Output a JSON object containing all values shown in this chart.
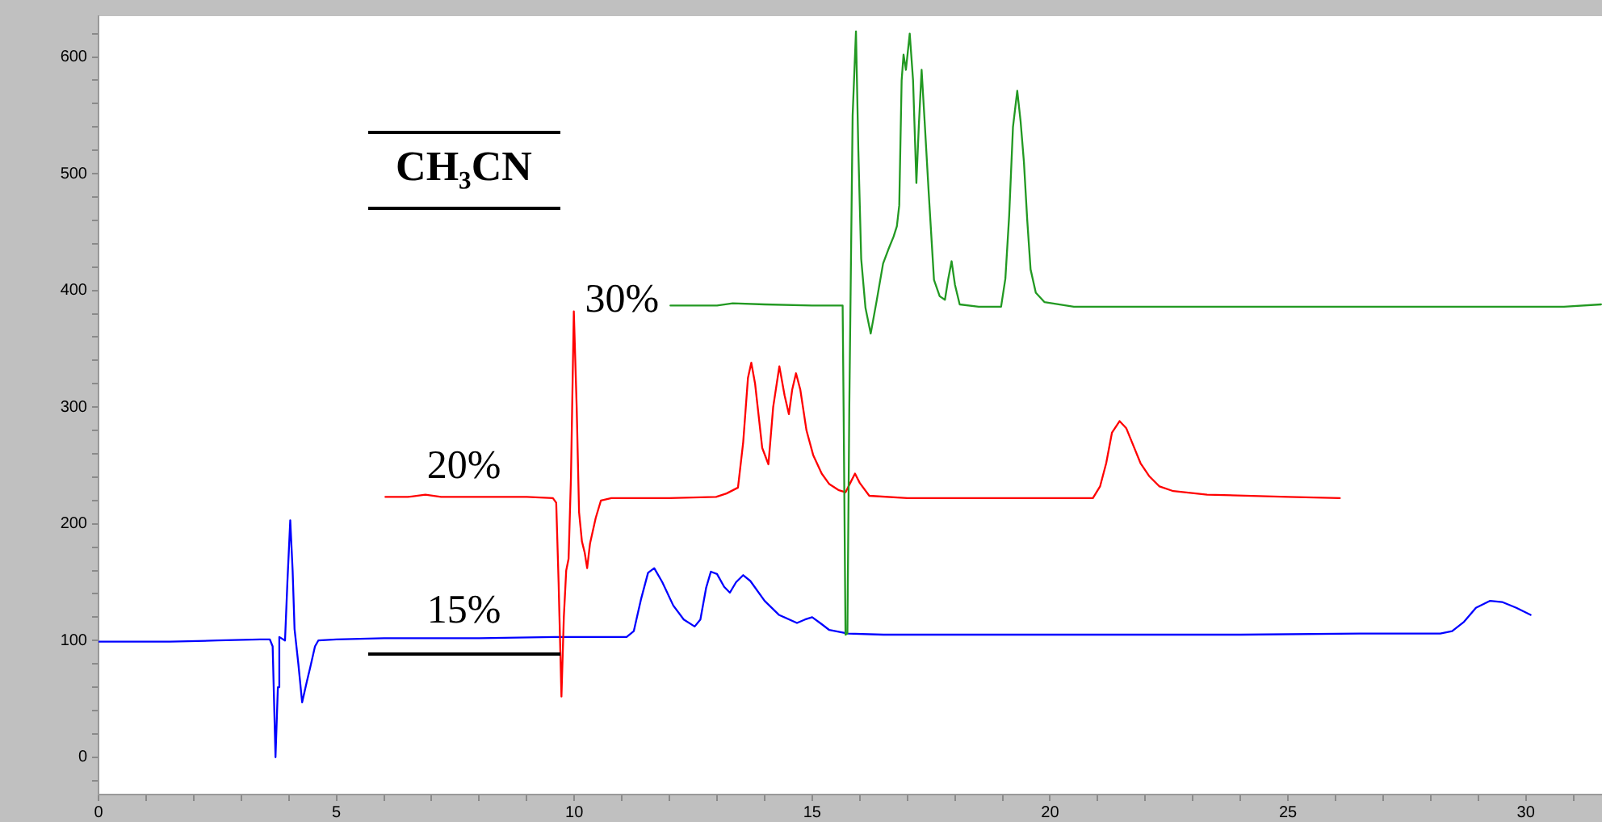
{
  "chart_data": {
    "type": "line",
    "legend_title": "CH₃CN",
    "marker": "none",
    "xlim": [
      0,
      31.6
    ],
    "ylim": [
      -32,
      635
    ],
    "xticks": [
      0,
      {
        "value": 1,
        "label": null
      },
      {
        "value": 2,
        "label": null
      },
      {
        "value": 3,
        "label": null
      },
      {
        "value": 4,
        "label": null
      },
      5,
      {
        "value": 6,
        "label": null
      },
      {
        "value": 7,
        "label": null
      },
      {
        "value": 8,
        "label": null
      },
      {
        "value": 9,
        "label": null
      },
      10,
      {
        "value": 11,
        "label": null
      },
      {
        "value": 12,
        "label": null
      },
      {
        "value": 13,
        "label": null
      },
      {
        "value": 14,
        "label": null
      },
      15,
      {
        "value": 16,
        "label": null
      },
      {
        "value": 17,
        "label": null
      },
      {
        "value": 18,
        "label": null
      },
      {
        "value": 19,
        "label": null
      },
      20,
      {
        "value": 21,
        "label": null
      },
      {
        "value": 22,
        "label": null
      },
      {
        "value": 23,
        "label": null
      },
      {
        "value": 24,
        "label": null
      },
      25,
      {
        "value": 26,
        "label": null
      },
      {
        "value": 27,
        "label": null
      },
      {
        "value": 28,
        "label": null
      },
      {
        "value": 29,
        "label": null
      },
      30,
      {
        "value": 31,
        "label": null
      }
    ],
    "yticks": [
      {
        "value": -20,
        "label": null
      },
      0,
      {
        "value": 20,
        "label": null
      },
      {
        "value": 40,
        "label": null
      },
      {
        "value": 60,
        "label": null
      },
      {
        "value": 80,
        "label": null
      },
      100,
      {
        "value": 120,
        "label": null
      },
      {
        "value": 140,
        "label": null
      },
      {
        "value": 160,
        "label": null
      },
      {
        "value": 180,
        "label": null
      },
      200,
      {
        "value": 220,
        "label": null
      },
      {
        "value": 240,
        "label": null
      },
      {
        "value": 260,
        "label": null
      },
      {
        "value": 280,
        "label": null
      },
      300,
      {
        "value": 320,
        "label": null
      },
      {
        "value": 340,
        "label": null
      },
      {
        "value": 360,
        "label": null
      },
      {
        "value": 380,
        "label": null
      },
      400,
      {
        "value": 420,
        "label": null
      },
      {
        "value": 440,
        "label": null
      },
      {
        "value": 460,
        "label": null
      },
      {
        "value": 480,
        "label": null
      },
      500,
      {
        "value": 520,
        "label": null
      },
      {
        "value": 540,
        "label": null
      },
      {
        "value": 560,
        "label": null
      },
      {
        "value": 580,
        "label": null
      },
      600,
      {
        "value": 620,
        "label": null
      }
    ],
    "series": [
      {
        "name": "30%",
        "color": "#229922",
        "x": [
          12.02,
          13.0,
          13.33,
          14.0,
          15.0,
          15.64,
          15.66,
          15.7,
          15.74,
          15.78,
          15.85,
          15.92,
          15.97,
          16.03,
          16.12,
          16.23,
          16.35,
          16.49,
          16.6,
          16.71,
          16.78,
          16.83,
          16.88,
          16.92,
          16.97,
          17.05,
          17.12,
          17.19,
          17.24,
          17.3,
          17.37,
          17.45,
          17.56,
          17.68,
          17.79,
          17.86,
          17.93,
          18.0,
          18.1,
          18.5,
          18.97,
          19.06,
          19.14,
          19.22,
          19.31,
          19.38,
          19.45,
          19.52,
          19.59,
          19.7,
          19.88,
          20.5,
          24,
          28,
          30.8,
          31.58
        ],
        "values": [
          387,
          387,
          389,
          388,
          387,
          387,
          300,
          105,
          106,
          300,
          550,
          622,
          520,
          427,
          385,
          363,
          390,
          423,
          435,
          446,
          455,
          473,
          580,
          602,
          589,
          620,
          580,
          492,
          540,
          589,
          540,
          483,
          409,
          395,
          392,
          410,
          425,
          405,
          388,
          386,
          386,
          410,
          464,
          540,
          571,
          545,
          510,
          460,
          418,
          398,
          390,
          386,
          386,
          386,
          386,
          388
        ]
      },
      {
        "name": "20%",
        "color": "#ff0000",
        "x": [
          6.03,
          6.5,
          6.87,
          7.2,
          8,
          9.0,
          9.55,
          9.62,
          9.67,
          9.73,
          9.78,
          9.83,
          9.88,
          9.93,
          9.99,
          10.05,
          10.1,
          10.16,
          10.22,
          10.27,
          10.33,
          10.45,
          10.56,
          10.78,
          12,
          12.98,
          13.2,
          13.44,
          13.55,
          13.65,
          13.72,
          13.8,
          13.95,
          14.08,
          14.18,
          14.31,
          14.42,
          14.51,
          14.58,
          14.66,
          14.75,
          14.88,
          15.02,
          15.2,
          15.36,
          15.55,
          15.7,
          15.8,
          15.9,
          16.0,
          16.2,
          17,
          20,
          20.9,
          21.05,
          21.18,
          21.3,
          21.46,
          21.6,
          21.74,
          21.9,
          22.08,
          22.3,
          22.59,
          23.3,
          25,
          26.09
        ],
        "values": [
          223,
          223,
          225,
          223,
          223,
          223,
          222,
          218,
          150,
          52,
          120,
          160,
          170,
          240,
          382,
          300,
          210,
          185,
          175,
          162,
          183,
          205,
          220,
          222,
          222,
          223,
          226,
          231,
          270,
          325,
          338,
          320,
          265,
          251,
          300,
          335,
          310,
          294,
          315,
          329,
          315,
          280,
          259,
          243,
          234,
          229,
          227,
          235,
          243,
          235,
          224,
          222,
          222,
          222,
          232,
          252,
          278,
          288,
          282,
          268,
          252,
          241,
          232,
          228,
          225,
          223,
          222
        ]
      },
      {
        "name": "15%",
        "color": "#0000ff",
        "x": [
          0,
          1.5,
          2.5,
          3.4,
          3.6,
          3.66,
          3.72,
          3.77,
          3.8,
          3.92,
          3.97,
          4.03,
          4.08,
          4.12,
          4.2,
          4.28,
          4.38,
          4.45,
          4.55,
          4.62,
          5,
          6,
          8,
          9.6,
          11.1,
          11.25,
          11.4,
          11.55,
          11.68,
          11.85,
          12.08,
          12.3,
          12.53,
          12.65,
          12.77,
          12.87,
          13.0,
          13.15,
          13.27,
          13.4,
          13.55,
          13.7,
          14.0,
          14.3,
          14.68,
          14.85,
          15.0,
          15.2,
          15.36,
          15.75,
          16.5,
          20,
          24,
          26.5,
          28.2,
          28.45,
          28.7,
          28.95,
          29.25,
          29.5,
          29.8,
          30.1
        ],
        "values": [
          99,
          99,
          100,
          101,
          101,
          95,
          0,
          60,
          103,
          100,
          150,
          203,
          160,
          110,
          80,
          47,
          65,
          77,
          95,
          100,
          101,
          102,
          102,
          103,
          103,
          108,
          135,
          158,
          162,
          150,
          130,
          118,
          112,
          118,
          145,
          159,
          157,
          146,
          141,
          150,
          156,
          151,
          134,
          122,
          115,
          118,
          120,
          114,
          109,
          106,
          105,
          105,
          105,
          106,
          106,
          108,
          116,
          128,
          134,
          133,
          128,
          122
        ]
      }
    ]
  }
}
